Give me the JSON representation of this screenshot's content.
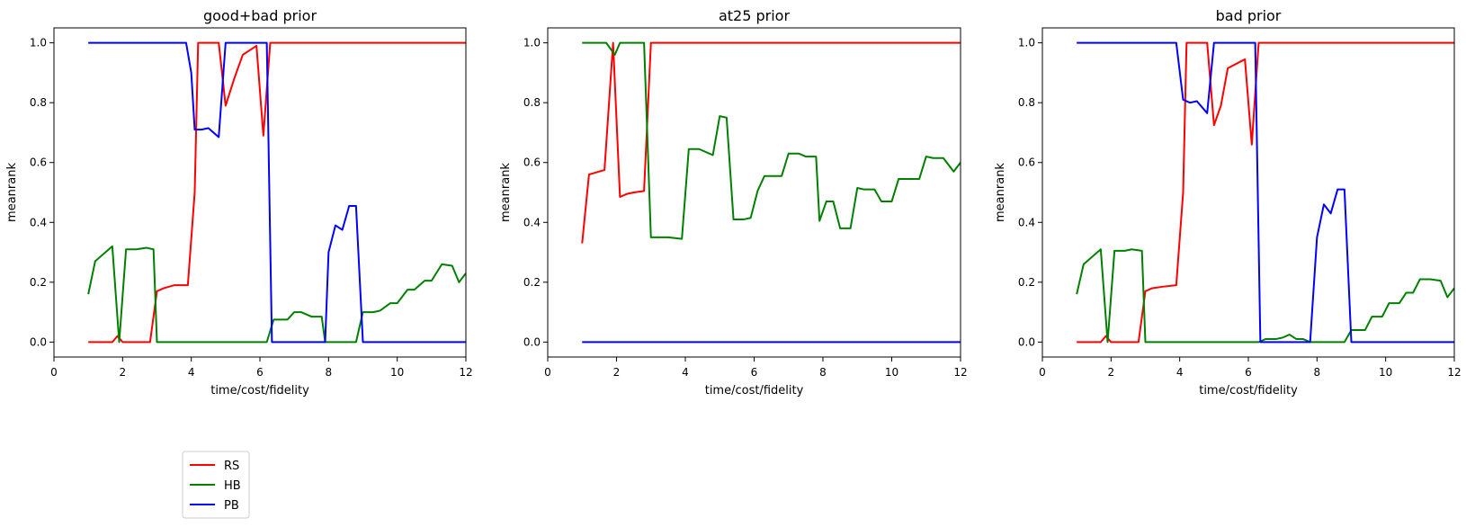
{
  "chart_data": [
    {
      "type": "line",
      "title": "good+bad prior",
      "xlabel": "time/cost/fidelity",
      "ylabel": "meanrank",
      "xlim": [
        0,
        12
      ],
      "ylim": [
        -0.05,
        1.05
      ],
      "xticks": [
        0,
        2,
        4,
        6,
        8,
        10,
        12
      ],
      "xtick_labels": [
        "0",
        "2",
        "4",
        "6",
        "8",
        "10",
        "12"
      ],
      "yticks": [
        0.0,
        0.2,
        0.4,
        0.6,
        0.8,
        1.0
      ],
      "ytick_labels": [
        "0.0",
        "0.2",
        "0.4",
        "0.6",
        "0.8",
        "1.0"
      ],
      "grid": false,
      "series": [
        {
          "name": "RS",
          "color": "#ff0000",
          "x": [
            1.0,
            1.7,
            1.85,
            2.0,
            2.2,
            2.8,
            3.0,
            3.2,
            3.5,
            3.9,
            4.1,
            4.2,
            4.8,
            5.0,
            5.25,
            5.5,
            5.9,
            6.1,
            6.3,
            12.0
          ],
          "y": [
            0.0,
            0.0,
            0.02,
            0.0,
            0.0,
            0.0,
            0.17,
            0.18,
            0.19,
            0.19,
            0.5,
            1.0,
            1.0,
            0.79,
            0.88,
            0.96,
            0.99,
            0.69,
            1.0,
            1.0
          ]
        },
        {
          "name": "HB",
          "color": "#008000",
          "x": [
            1.0,
            1.2,
            1.5,
            1.7,
            1.9,
            2.1,
            2.4,
            2.7,
            2.9,
            3.0,
            6.2,
            6.4,
            6.8,
            7.0,
            7.2,
            7.5,
            7.8,
            7.9,
            8.8,
            9.0,
            9.3,
            9.5,
            9.8,
            10.0,
            10.3,
            10.5,
            10.8,
            11.0,
            11.3,
            11.6,
            11.8,
            12.0
          ],
          "y": [
            0.16,
            0.27,
            0.3,
            0.32,
            0.0,
            0.31,
            0.31,
            0.315,
            0.31,
            0.0,
            0.0,
            0.075,
            0.075,
            0.1,
            0.1,
            0.085,
            0.085,
            0.0,
            0.0,
            0.1,
            0.1,
            0.105,
            0.13,
            0.13,
            0.175,
            0.175,
            0.205,
            0.205,
            0.26,
            0.255,
            0.2,
            0.23
          ]
        },
        {
          "name": "PB",
          "color": "#0000ff",
          "x": [
            1.0,
            3.85,
            4.0,
            4.1,
            4.3,
            4.5,
            4.8,
            5.0,
            5.5,
            6.1,
            6.2,
            6.35,
            7.9,
            8.0,
            8.2,
            8.4,
            8.6,
            8.8,
            9.0,
            12.0
          ],
          "y": [
            1.0,
            1.0,
            0.9,
            0.71,
            0.71,
            0.715,
            0.685,
            1.0,
            1.0,
            1.0,
            1.0,
            0.0,
            0.0,
            0.3,
            0.39,
            0.375,
            0.455,
            0.455,
            0.0,
            0.0
          ]
        }
      ]
    },
    {
      "type": "line",
      "title": "at25 prior",
      "xlabel": "time/cost/fidelity",
      "ylabel": "meanrank",
      "xlim": [
        0,
        12
      ],
      "ylim": [
        -0.05,
        1.05
      ],
      "xticks": [
        0,
        2,
        4,
        6,
        8,
        10,
        12
      ],
      "xtick_labels": [
        "0",
        "2",
        "4",
        "6",
        "8",
        "10",
        "12"
      ],
      "yticks": [
        0.0,
        0.2,
        0.4,
        0.6,
        0.8,
        1.0
      ],
      "ytick_labels": [
        "0.0",
        "0.2",
        "0.4",
        "0.6",
        "0.8",
        "1.0"
      ],
      "grid": false,
      "series": [
        {
          "name": "RS",
          "color": "#ff0000",
          "x": [
            1.0,
            1.2,
            1.5,
            1.65,
            1.9,
            2.1,
            2.3,
            2.5,
            2.8,
            3.0,
            12.0
          ],
          "y": [
            0.33,
            0.56,
            0.57,
            0.575,
            1.0,
            0.485,
            0.495,
            0.5,
            0.505,
            1.0,
            1.0
          ]
        },
        {
          "name": "HB",
          "color": "#008000",
          "x": [
            1.0,
            1.7,
            1.95,
            2.1,
            2.4,
            2.8,
            3.0,
            3.5,
            3.9,
            4.1,
            4.4,
            4.8,
            5.0,
            5.2,
            5.4,
            5.7,
            5.9,
            6.1,
            6.3,
            6.8,
            7.0,
            7.3,
            7.5,
            7.8,
            7.9,
            8.1,
            8.3,
            8.5,
            8.8,
            9.0,
            9.2,
            9.5,
            9.7,
            10.0,
            10.2,
            10.5,
            10.8,
            11.0,
            11.2,
            11.5,
            11.8,
            12.0
          ],
          "y": [
            1.0,
            1.0,
            0.96,
            1.0,
            1.0,
            1.0,
            0.35,
            0.35,
            0.345,
            0.645,
            0.645,
            0.625,
            0.755,
            0.75,
            0.41,
            0.41,
            0.415,
            0.505,
            0.555,
            0.555,
            0.63,
            0.63,
            0.62,
            0.62,
            0.405,
            0.47,
            0.47,
            0.38,
            0.38,
            0.515,
            0.51,
            0.51,
            0.47,
            0.47,
            0.545,
            0.545,
            0.545,
            0.62,
            0.615,
            0.615,
            0.57,
            0.6
          ]
        },
        {
          "name": "PB",
          "color": "#0000ff",
          "x": [
            1.0,
            12.0
          ],
          "y": [
            0.0,
            0.0
          ]
        }
      ]
    },
    {
      "type": "line",
      "title": "bad prior",
      "xlabel": "time/cost/fidelity",
      "ylabel": "meanrank",
      "xlim": [
        0,
        12
      ],
      "ylim": [
        -0.05,
        1.05
      ],
      "xticks": [
        0,
        2,
        4,
        6,
        8,
        10,
        12
      ],
      "xtick_labels": [
        "0",
        "2",
        "4",
        "6",
        "8",
        "10",
        "12"
      ],
      "yticks": [
        0.0,
        0.2,
        0.4,
        0.6,
        0.8,
        1.0
      ],
      "ytick_labels": [
        "0.0",
        "0.2",
        "0.4",
        "0.6",
        "0.8",
        "1.0"
      ],
      "grid": false,
      "series": [
        {
          "name": "RS",
          "color": "#ff0000",
          "x": [
            1.0,
            1.7,
            1.85,
            2.0,
            2.2,
            2.8,
            3.0,
            3.2,
            3.5,
            3.9,
            4.1,
            4.2,
            4.8,
            5.0,
            5.2,
            5.4,
            5.9,
            6.1,
            6.3,
            12.0
          ],
          "y": [
            0.0,
            0.0,
            0.02,
            0.0,
            0.0,
            0.0,
            0.17,
            0.18,
            0.185,
            0.19,
            0.5,
            1.0,
            1.0,
            0.725,
            0.79,
            0.915,
            0.945,
            0.66,
            1.0,
            1.0
          ]
        },
        {
          "name": "HB",
          "color": "#008000",
          "x": [
            1.0,
            1.2,
            1.5,
            1.7,
            1.9,
            2.1,
            2.4,
            2.6,
            2.9,
            3.0,
            6.3,
            6.5,
            6.8,
            7.0,
            7.2,
            7.4,
            7.6,
            7.8,
            8.0,
            8.8,
            9.0,
            9.4,
            9.6,
            9.9,
            10.1,
            10.4,
            10.6,
            10.8,
            11.0,
            11.3,
            11.6,
            11.8,
            12.0
          ],
          "y": [
            0.16,
            0.26,
            0.29,
            0.31,
            0.0,
            0.305,
            0.305,
            0.31,
            0.305,
            0.0,
            0.0,
            0.01,
            0.01,
            0.015,
            0.025,
            0.01,
            0.01,
            0.0,
            0.0,
            0.0,
            0.04,
            0.04,
            0.085,
            0.085,
            0.13,
            0.13,
            0.165,
            0.165,
            0.21,
            0.21,
            0.205,
            0.15,
            0.18
          ]
        },
        {
          "name": "PB",
          "color": "#0000ff",
          "x": [
            1.0,
            3.9,
            4.1,
            4.3,
            4.5,
            4.8,
            5.0,
            5.5,
            6.1,
            6.2,
            6.35,
            7.8,
            8.0,
            8.2,
            8.4,
            8.6,
            8.8,
            9.0,
            12.0
          ],
          "y": [
            1.0,
            1.0,
            0.81,
            0.8,
            0.805,
            0.765,
            1.0,
            1.0,
            1.0,
            1.0,
            0.0,
            0.0,
            0.35,
            0.46,
            0.43,
            0.51,
            0.51,
            0.0,
            0.0
          ]
        }
      ]
    }
  ],
  "legend": {
    "placement": "bottom-left",
    "entries": [
      {
        "label": "RS",
        "color": "#ff0000"
      },
      {
        "label": "HB",
        "color": "#008000"
      },
      {
        "label": "PB",
        "color": "#0000ff"
      }
    ]
  }
}
